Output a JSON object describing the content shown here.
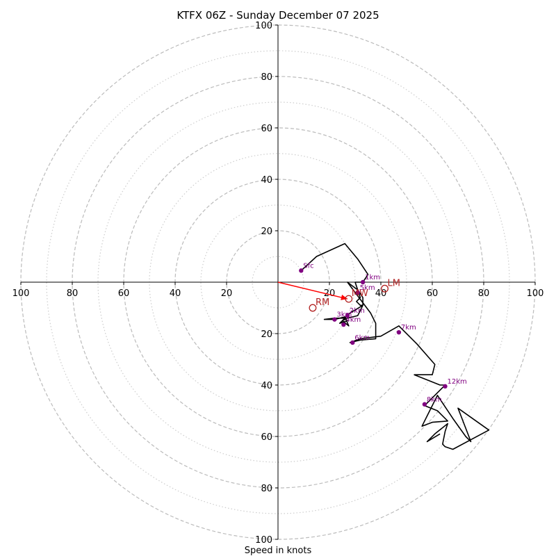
{
  "chart_data": {
    "type": "hodograph",
    "title": "KTFX 06Z - Sunday December 07 2025",
    "xlabel": "Speed in knots",
    "range": 100,
    "rings": [
      10,
      20,
      30,
      40,
      50,
      60,
      70,
      80,
      90,
      100
    ],
    "tick_values": [
      20,
      40,
      60,
      80,
      100
    ],
    "tick_labels": [
      "20",
      "40",
      "60",
      "80",
      "100"
    ],
    "colors": {
      "trace": "#000000",
      "height_marker": "#800080",
      "motion": "#b22222",
      "shear_vector": "#ff0000",
      "ring_major": "#bbbbbb",
      "ring_minor": "#cccccc"
    },
    "trace": [
      [
        9,
        4.5
      ],
      [
        15,
        10
      ],
      [
        26,
        15
      ],
      [
        31,
        9
      ],
      [
        35,
        3
      ],
      [
        33,
        0
      ],
      [
        30,
        0
      ],
      [
        31,
        -3
      ],
      [
        32,
        -6
      ],
      [
        30.5,
        -7.5
      ],
      [
        32,
        -9
      ],
      [
        33,
        -9
      ],
      [
        31,
        -13
      ],
      [
        27,
        -14
      ],
      [
        25,
        -15
      ],
      [
        27.5,
        -17
      ],
      [
        26,
        -13.5
      ],
      [
        24,
        -14
      ],
      [
        22,
        -14.5
      ],
      [
        18,
        -14.5
      ],
      [
        22,
        -14
      ],
      [
        26,
        -14
      ],
      [
        24,
        -16
      ],
      [
        27,
        -15
      ],
      [
        26,
        -14
      ],
      [
        28,
        -12
      ],
      [
        33,
        -9
      ],
      [
        33,
        -6
      ],
      [
        31,
        -3
      ],
      [
        27,
        0
      ],
      [
        33,
        -8
      ],
      [
        36,
        -12
      ],
      [
        38,
        -16
      ],
      [
        38,
        -22
      ],
      [
        32,
        -22.5
      ],
      [
        28,
        -23.5
      ],
      [
        32,
        -22
      ],
      [
        40,
        -21
      ],
      [
        47,
        -17
      ],
      [
        54,
        -24
      ],
      [
        61,
        -32
      ],
      [
        60,
        -36
      ],
      [
        53,
        -36
      ],
      [
        58,
        -38
      ],
      [
        63,
        -40
      ],
      [
        65,
        -40
      ],
      [
        61,
        -44
      ],
      [
        57,
        -48
      ],
      [
        62,
        -50
      ],
      [
        66,
        -54
      ],
      [
        60,
        -54.5
      ],
      [
        56,
        -56
      ],
      [
        58,
        -52
      ],
      [
        62,
        -44
      ],
      [
        68,
        -53
      ],
      [
        73,
        -60
      ],
      [
        75,
        -62
      ],
      [
        70,
        -49
      ],
      [
        82,
        -57.5
      ],
      [
        68,
        -65
      ],
      [
        65,
        -64
      ],
      [
        64,
        -63
      ],
      [
        65,
        -58
      ],
      [
        66,
        -55
      ],
      [
        61,
        -59
      ],
      [
        58,
        -62
      ],
      [
        63,
        -59
      ]
    ],
    "height_markers": [
      {
        "label": "Sfc",
        "x": 9,
        "y": 4.5
      },
      {
        "label": "1km",
        "x": 33,
        "y": 0
      },
      {
        "label": "5km",
        "x": 31,
        "y": -4
      },
      {
        "label": "2km",
        "x": 27,
        "y": -13
      },
      {
        "label": "3km",
        "x": 22,
        "y": -14.5
      },
      {
        "label": "4km",
        "x": 25.5,
        "y": -16.5
      },
      {
        "label": "6km",
        "x": 29,
        "y": -23.5
      },
      {
        "label": "7km",
        "x": 47,
        "y": -19.5
      },
      {
        "label": "12km",
        "x": 65,
        "y": -40.5
      },
      {
        "label": "8km",
        "x": 57,
        "y": -47.5
      }
    ],
    "storm_motion": [
      {
        "label": "RM",
        "x": 13.5,
        "y": -10
      },
      {
        "label": "LM",
        "x": 41.5,
        "y": -2.5
      },
      {
        "label": "MW",
        "x": 27.5,
        "y": -6.5
      }
    ],
    "shear_vector": {
      "x": 27,
      "y": -6.5
    }
  }
}
